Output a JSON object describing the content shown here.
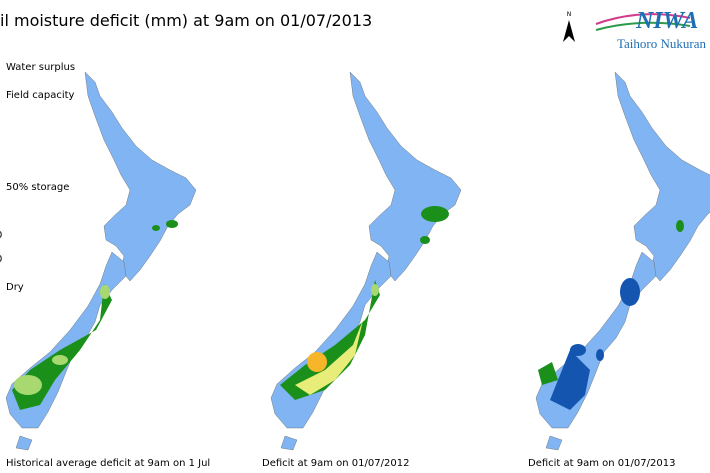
{
  "header": {
    "title": "il moisture deficit (mm) at  9am on 01/07/2013",
    "north": "N"
  },
  "logo": {
    "name": "NIWA",
    "subtitle": "Taihoro Nukuran"
  },
  "legend": {
    "labels": [
      "Water surplus",
      "Field capacity",
      "50% storage",
      "0",
      "0",
      "Dry"
    ]
  },
  "maps": [
    {
      "caption": "Historical average deficit at 9am on 1 Jul"
    },
    {
      "caption": "Deficit at  9am on 01/07/2012"
    },
    {
      "caption": "Deficit at  9am on 01/07/2013"
    }
  ]
}
